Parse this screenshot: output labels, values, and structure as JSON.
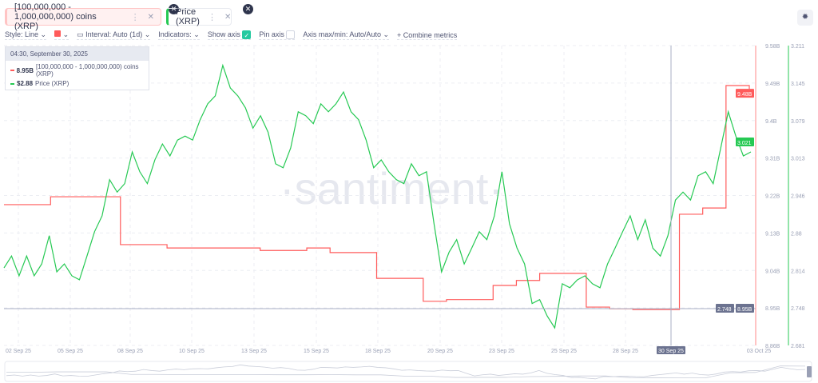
{
  "metrics": [
    {
      "label": "[100,000,000 - 1,000,000,000) coins (XRP)",
      "color": "#ff5b5b"
    },
    {
      "label": "Price (XRP)",
      "color": "#26c953"
    }
  ],
  "toolbar": {
    "style": "Style: Line",
    "interval": "Interval: Auto (1d)",
    "indicators": "Indicators:",
    "show_axis": "Show axis",
    "show_axis_checked": true,
    "pin_axis": "Pin axis",
    "pin_axis_checked": false,
    "axis_maxmin": "Axis max/min: Auto/Auto",
    "combine": "Combine metrics"
  },
  "tooltip": {
    "date": "04:30, September 30, 2025",
    "rows": [
      {
        "value": "8.95B",
        "label": "[100,000,000 - 1,000,000,000) coins (XRP)"
      },
      {
        "value": "$2.88",
        "label": "Price (XRP)"
      }
    ]
  },
  "watermark": "·santiment·",
  "chart_data": {
    "type": "line",
    "x_ticks": [
      "02 Sep 25",
      "05 Sep 25",
      "08 Sep 25",
      "10 Sep 25",
      "13 Sep 25",
      "15 Sep 25",
      "18 Sep 25",
      "20 Sep 25",
      "23 Sep 25",
      "25 Sep 25",
      "28 Sep 25",
      "30 Sep 25",
      "03 Oct 25"
    ],
    "cursor_label": "30 Sep 25",
    "left_axis": {
      "ticks": [
        "9.58B",
        "9.49B",
        "9.4B",
        "9.31B",
        "9.22B",
        "9.13B",
        "9.04B",
        "8.95B",
        "8.86B"
      ],
      "ylim": [
        8.86,
        9.58
      ],
      "last_label": "9.48B",
      "cursor_label": "8.95B"
    },
    "right_axis": {
      "ticks": [
        "3.211",
        "3.145",
        "3.079",
        "3.013",
        "2.946",
        "2.88",
        "2.814",
        "2.748",
        "2.681"
      ],
      "ylim": [
        2.681,
        3.211
      ],
      "last_label": "3.021",
      "cursor_label": "2.748"
    },
    "series": [
      {
        "name": "[100,000,000 - 1,000,000,000) coins (XRP)",
        "unit": "B",
        "color": "#ff5b5b",
        "step": true,
        "values": [
          9.198,
          9.198,
          9.217,
          9.217,
          9.217,
          9.102,
          9.102,
          9.094,
          9.094,
          9.094,
          9.094,
          9.088,
          9.088,
          9.094,
          9.083,
          9.083,
          9.021,
          9.021,
          8.966,
          8.97,
          8.97,
          9.004,
          9.016,
          9.033,
          9.033,
          8.952,
          8.948,
          8.946,
          8.946,
          9.175,
          9.19,
          9.484,
          9.476
        ]
      },
      {
        "name": "Price (XRP)",
        "color": "#26c953",
        "values": [
          2.818,
          2.839,
          2.804,
          2.839,
          2.804,
          2.825,
          2.875,
          2.811,
          2.825,
          2.804,
          2.797,
          2.839,
          2.882,
          2.91,
          2.974,
          2.952,
          2.967,
          3.023,
          2.988,
          2.967,
          3.009,
          3.037,
          3.016,
          3.044,
          3.051,
          3.044,
          3.08,
          3.108,
          3.122,
          3.176,
          3.136,
          3.122,
          3.101,
          3.065,
          3.087,
          3.058,
          3.002,
          2.995,
          3.03,
          3.094,
          3.087,
          3.073,
          3.108,
          3.094,
          3.108,
          3.129,
          3.094,
          3.08,
          3.044,
          2.995,
          3.009,
          2.988,
          2.974,
          2.967,
          3.002,
          2.981,
          2.988,
          2.896,
          2.811,
          2.846,
          2.868,
          2.825,
          2.853,
          2.882,
          2.868,
          2.91,
          2.988,
          2.896,
          2.853,
          2.825,
          2.755,
          2.762,
          2.733,
          2.712,
          2.79,
          2.783,
          2.797,
          2.804,
          2.79,
          2.783,
          2.825,
          2.853,
          2.882,
          2.91,
          2.868,
          2.903,
          2.853,
          2.839,
          2.875,
          2.938,
          2.952,
          2.938,
          2.981,
          2.988,
          2.967,
          3.03,
          3.094,
          3.051,
          3.016,
          3.023
        ]
      }
    ]
  }
}
